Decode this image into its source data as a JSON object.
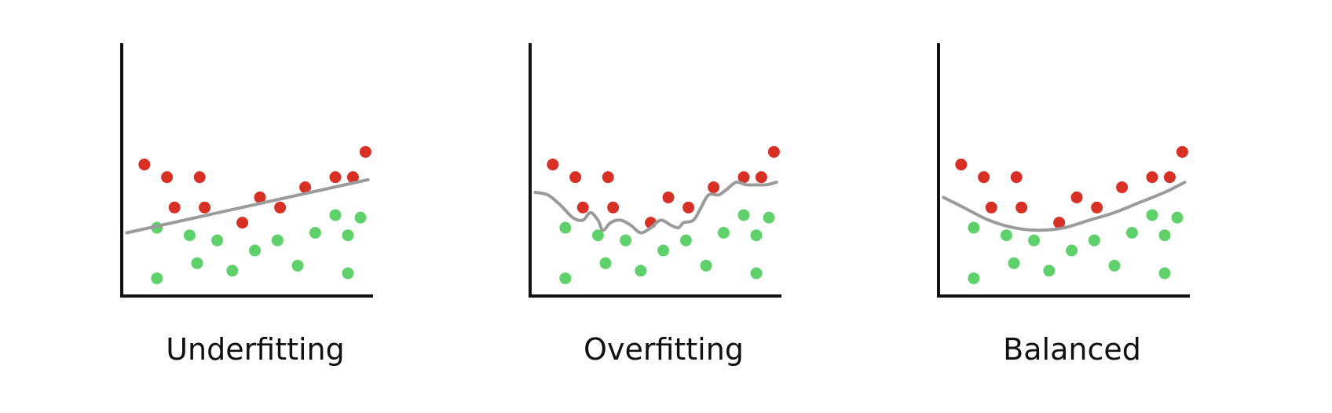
{
  "colors": {
    "axis": "#111111",
    "curve": "#9b9b9b",
    "class_a_point": "#d93025",
    "class_b_point": "#5fd16b"
  },
  "panels": [
    {
      "label": "Underfitting",
      "fit": "linear",
      "red_points": [
        [
          0.09,
          0.52
        ],
        [
          0.18,
          0.47
        ],
        [
          0.31,
          0.47
        ],
        [
          0.21,
          0.35
        ],
        [
          0.33,
          0.35
        ],
        [
          0.48,
          0.29
        ],
        [
          0.55,
          0.39
        ],
        [
          0.63,
          0.35
        ],
        [
          0.73,
          0.43
        ],
        [
          0.85,
          0.47
        ],
        [
          0.92,
          0.47
        ],
        [
          0.97,
          0.57
        ]
      ],
      "green_points": [
        [
          0.14,
          0.27
        ],
        [
          0.27,
          0.24
        ],
        [
          0.38,
          0.22
        ],
        [
          0.3,
          0.13
        ],
        [
          0.44,
          0.1
        ],
        [
          0.53,
          0.18
        ],
        [
          0.62,
          0.22
        ],
        [
          0.7,
          0.12
        ],
        [
          0.77,
          0.25
        ],
        [
          0.85,
          0.32
        ],
        [
          0.9,
          0.24
        ],
        [
          0.95,
          0.31
        ],
        [
          0.14,
          0.07
        ],
        [
          0.9,
          0.09
        ]
      ],
      "curve": [
        [
          0.02,
          0.25
        ],
        [
          0.98,
          0.46
        ]
      ]
    },
    {
      "label": "Overfitting",
      "fit": "wiggly",
      "red_points": [
        [
          0.09,
          0.52
        ],
        [
          0.18,
          0.47
        ],
        [
          0.31,
          0.47
        ],
        [
          0.21,
          0.35
        ],
        [
          0.33,
          0.35
        ],
        [
          0.48,
          0.29
        ],
        [
          0.55,
          0.39
        ],
        [
          0.63,
          0.35
        ],
        [
          0.73,
          0.43
        ],
        [
          0.85,
          0.47
        ],
        [
          0.92,
          0.47
        ],
        [
          0.97,
          0.57
        ]
      ],
      "green_points": [
        [
          0.14,
          0.27
        ],
        [
          0.27,
          0.24
        ],
        [
          0.38,
          0.22
        ],
        [
          0.3,
          0.13
        ],
        [
          0.44,
          0.1
        ],
        [
          0.53,
          0.18
        ],
        [
          0.62,
          0.22
        ],
        [
          0.7,
          0.12
        ],
        [
          0.77,
          0.25
        ],
        [
          0.85,
          0.32
        ],
        [
          0.9,
          0.24
        ],
        [
          0.95,
          0.31
        ],
        [
          0.14,
          0.07
        ],
        [
          0.9,
          0.09
        ]
      ],
      "curve": [
        [
          0.02,
          0.41
        ],
        [
          0.07,
          0.4
        ],
        [
          0.12,
          0.36
        ],
        [
          0.17,
          0.31
        ],
        [
          0.21,
          0.3
        ],
        [
          0.24,
          0.33
        ],
        [
          0.27,
          0.3
        ],
        [
          0.29,
          0.26
        ],
        [
          0.32,
          0.29
        ],
        [
          0.36,
          0.3
        ],
        [
          0.4,
          0.28
        ],
        [
          0.44,
          0.25
        ],
        [
          0.48,
          0.27
        ],
        [
          0.52,
          0.3
        ],
        [
          0.56,
          0.28
        ],
        [
          0.59,
          0.27
        ],
        [
          0.61,
          0.29
        ],
        [
          0.65,
          0.3
        ],
        [
          0.68,
          0.35
        ],
        [
          0.71,
          0.4
        ],
        [
          0.75,
          0.4
        ],
        [
          0.78,
          0.42
        ],
        [
          0.82,
          0.45
        ],
        [
          0.86,
          0.44
        ],
        [
          0.9,
          0.44
        ],
        [
          0.94,
          0.44
        ],
        [
          0.98,
          0.45
        ]
      ]
    },
    {
      "label": "Balanced",
      "fit": "quadratic",
      "red_points": [
        [
          0.09,
          0.52
        ],
        [
          0.18,
          0.47
        ],
        [
          0.31,
          0.47
        ],
        [
          0.21,
          0.35
        ],
        [
          0.33,
          0.35
        ],
        [
          0.48,
          0.29
        ],
        [
          0.55,
          0.39
        ],
        [
          0.63,
          0.35
        ],
        [
          0.73,
          0.43
        ],
        [
          0.85,
          0.47
        ],
        [
          0.92,
          0.47
        ],
        [
          0.97,
          0.57
        ]
      ],
      "green_points": [
        [
          0.14,
          0.27
        ],
        [
          0.27,
          0.24
        ],
        [
          0.38,
          0.22
        ],
        [
          0.3,
          0.13
        ],
        [
          0.44,
          0.1
        ],
        [
          0.53,
          0.18
        ],
        [
          0.62,
          0.22
        ],
        [
          0.7,
          0.12
        ],
        [
          0.77,
          0.25
        ],
        [
          0.85,
          0.32
        ],
        [
          0.9,
          0.24
        ],
        [
          0.95,
          0.31
        ],
        [
          0.14,
          0.07
        ],
        [
          0.9,
          0.09
        ]
      ],
      "curve": [
        [
          0.02,
          0.39
        ],
        [
          0.1,
          0.35
        ],
        [
          0.2,
          0.3
        ],
        [
          0.3,
          0.27
        ],
        [
          0.4,
          0.26
        ],
        [
          0.5,
          0.27
        ],
        [
          0.6,
          0.3
        ],
        [
          0.7,
          0.33
        ],
        [
          0.8,
          0.37
        ],
        [
          0.9,
          0.41
        ],
        [
          0.98,
          0.45
        ]
      ]
    }
  ]
}
